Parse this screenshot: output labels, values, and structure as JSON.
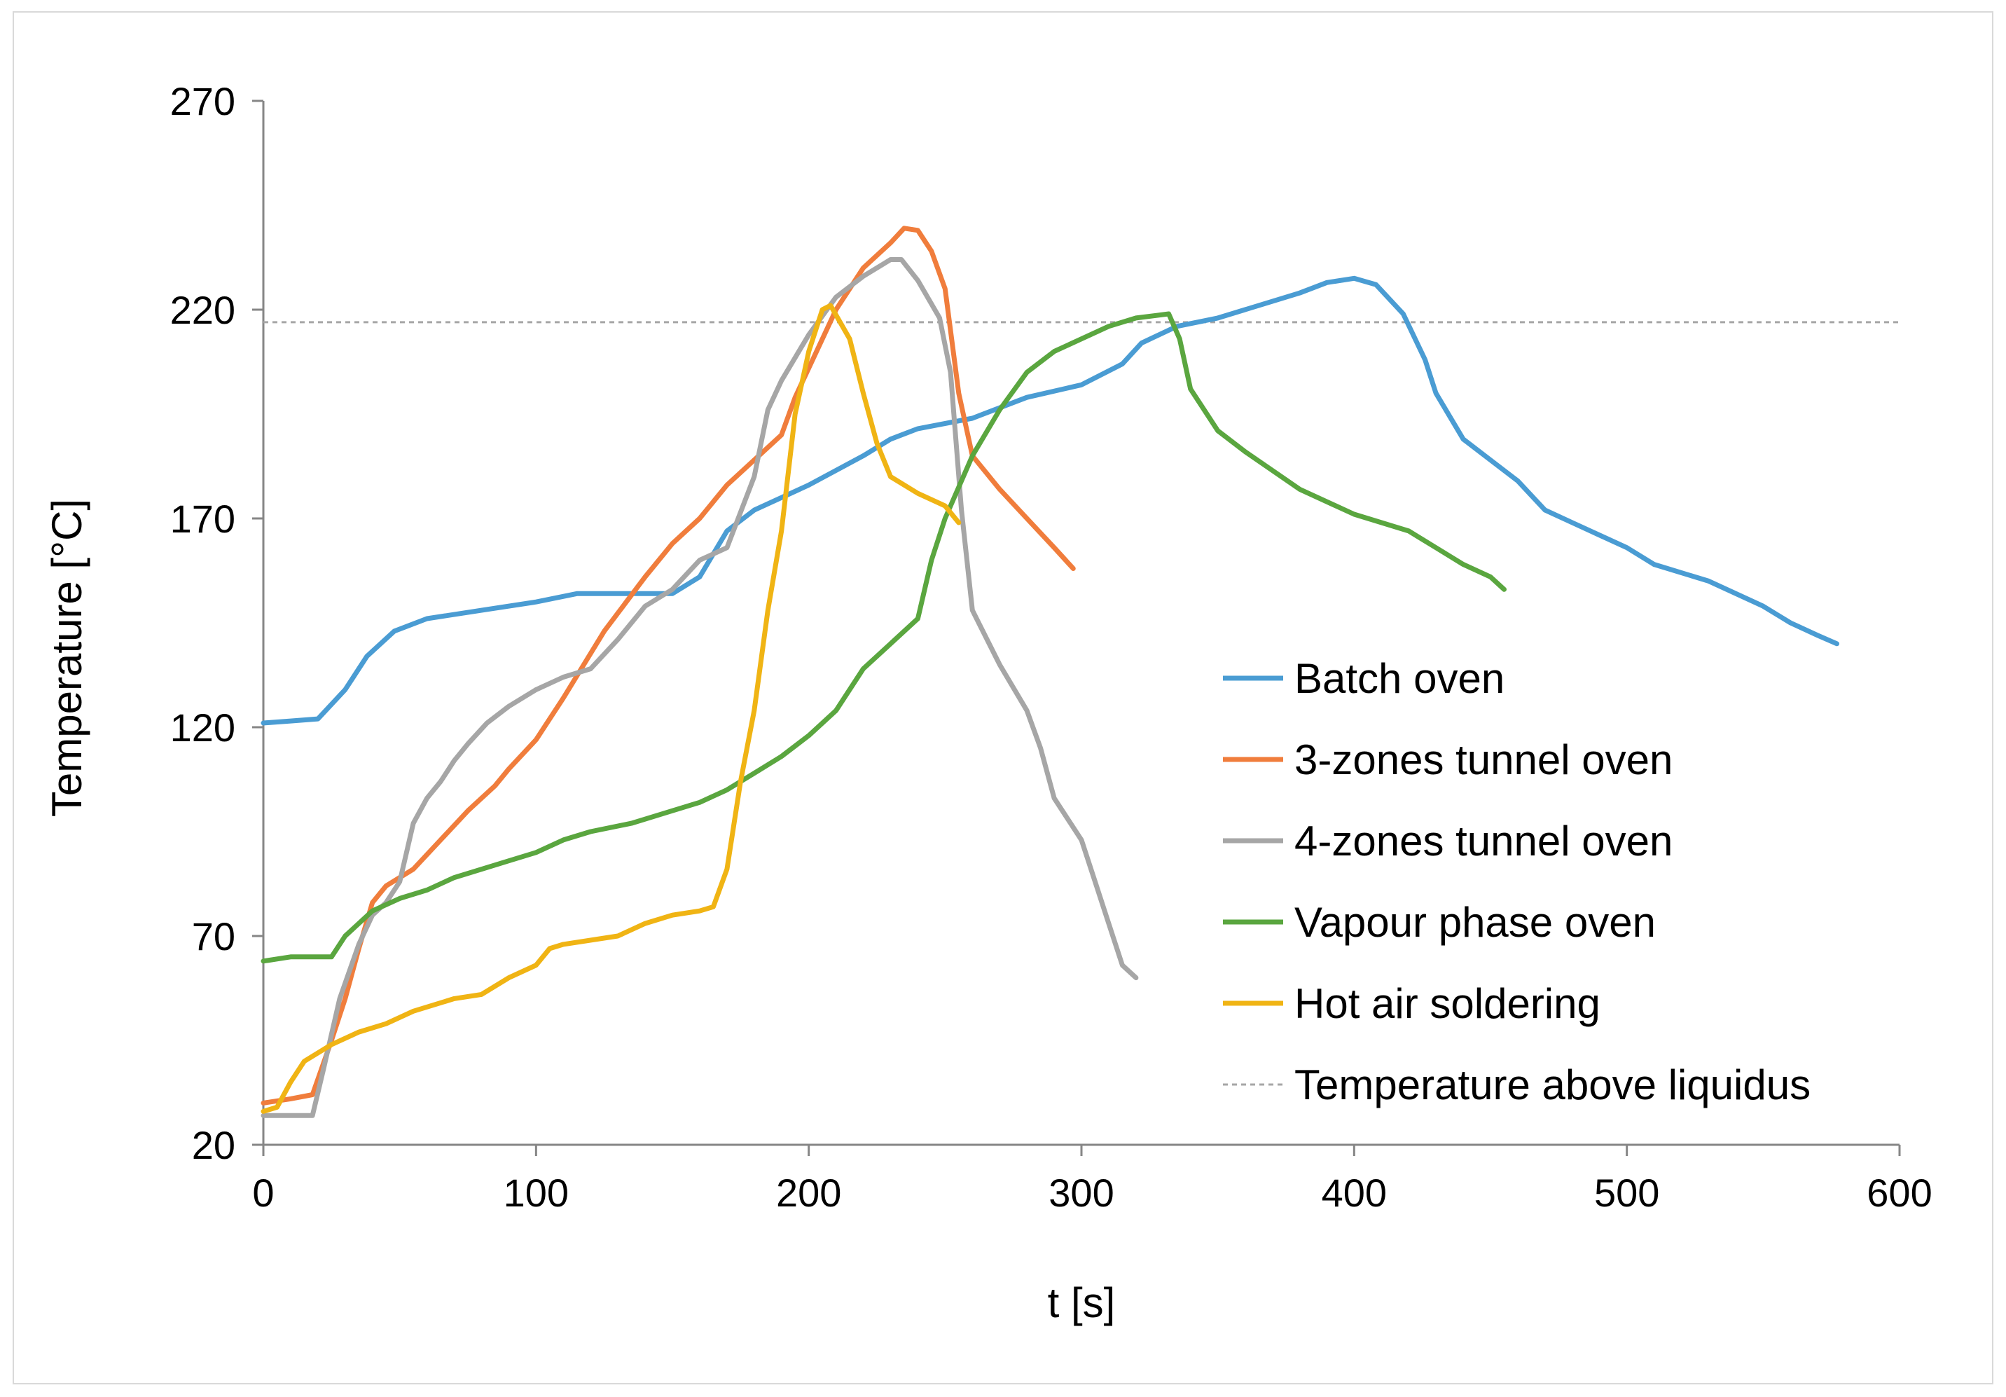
{
  "chart_data": {
    "type": "line",
    "title": "",
    "xlabel": "t [s]",
    "ylabel": "Temperature [°C]",
    "xlim": [
      0,
      600
    ],
    "ylim": [
      20,
      270
    ],
    "xticks": [
      0,
      100,
      200,
      300,
      400,
      500,
      600
    ],
    "yticks": [
      20,
      70,
      120,
      170,
      220,
      270
    ],
    "grid": false,
    "legend_position": "right",
    "series": [
      {
        "name": "Batch oven",
        "color": "#4a9cd3",
        "points": [
          [
            0,
            121
          ],
          [
            10,
            121.5
          ],
          [
            20,
            122
          ],
          [
            30,
            129
          ],
          [
            38,
            137
          ],
          [
            48,
            143
          ],
          [
            60,
            146
          ],
          [
            80,
            148
          ],
          [
            100,
            150
          ],
          [
            115,
            152
          ],
          [
            150,
            152
          ],
          [
            160,
            156
          ],
          [
            170,
            167
          ],
          [
            180,
            172
          ],
          [
            200,
            178
          ],
          [
            220,
            185
          ],
          [
            230,
            189
          ],
          [
            240,
            191.5
          ],
          [
            260,
            194
          ],
          [
            280,
            199
          ],
          [
            300,
            202
          ],
          [
            315,
            207
          ],
          [
            322,
            212
          ],
          [
            335,
            216
          ],
          [
            350,
            218
          ],
          [
            380,
            224
          ],
          [
            390,
            226.5
          ],
          [
            400,
            227.5
          ],
          [
            408,
            226
          ],
          [
            418,
            219
          ],
          [
            426,
            208
          ],
          [
            430,
            200
          ],
          [
            440,
            189
          ],
          [
            450,
            184
          ],
          [
            460,
            179
          ],
          [
            470,
            172
          ],
          [
            480,
            169
          ],
          [
            500,
            163
          ],
          [
            510,
            159
          ],
          [
            530,
            155
          ],
          [
            550,
            149
          ],
          [
            560,
            145
          ],
          [
            570,
            142
          ],
          [
            577,
            140
          ]
        ]
      },
      {
        "name": "3-zones tunnel oven",
        "color": "#f07d3c",
        "points": [
          [
            0,
            30
          ],
          [
            10,
            31
          ],
          [
            18,
            32
          ],
          [
            25,
            45
          ],
          [
            30,
            55
          ],
          [
            35,
            67
          ],
          [
            40,
            78
          ],
          [
            45,
            82
          ],
          [
            55,
            86
          ],
          [
            65,
            93
          ],
          [
            75,
            100
          ],
          [
            85,
            106
          ],
          [
            90,
            110
          ],
          [
            100,
            117
          ],
          [
            110,
            127
          ],
          [
            125,
            143
          ],
          [
            140,
            156
          ],
          [
            150,
            164
          ],
          [
            160,
            170
          ],
          [
            170,
            178
          ],
          [
            180,
            184
          ],
          [
            190,
            190
          ],
          [
            195,
            199
          ],
          [
            200,
            206
          ],
          [
            210,
            220
          ],
          [
            220,
            230
          ],
          [
            230,
            236
          ],
          [
            235,
            239.5
          ],
          [
            240,
            239
          ],
          [
            245,
            234
          ],
          [
            250,
            225
          ],
          [
            255,
            200
          ],
          [
            260,
            185
          ],
          [
            270,
            177
          ],
          [
            280,
            170
          ],
          [
            290,
            163
          ],
          [
            297,
            158
          ]
        ]
      },
      {
        "name": "4-zones tunnel oven",
        "color": "#a6a6a6",
        "points": [
          [
            0,
            27
          ],
          [
            10,
            27
          ],
          [
            18,
            27
          ],
          [
            22,
            38
          ],
          [
            28,
            55
          ],
          [
            35,
            68
          ],
          [
            40,
            75
          ],
          [
            45,
            78
          ],
          [
            50,
            83
          ],
          [
            55,
            97
          ],
          [
            60,
            103
          ],
          [
            65,
            107
          ],
          [
            70,
            112
          ],
          [
            75,
            116
          ],
          [
            82,
            121
          ],
          [
            90,
            125
          ],
          [
            100,
            129
          ],
          [
            110,
            132
          ],
          [
            120,
            134
          ],
          [
            130,
            141
          ],
          [
            140,
            149
          ],
          [
            150,
            153
          ],
          [
            160,
            160
          ],
          [
            170,
            163
          ],
          [
            180,
            180
          ],
          [
            185,
            196
          ],
          [
            190,
            203
          ],
          [
            200,
            214
          ],
          [
            210,
            223
          ],
          [
            220,
            228
          ],
          [
            230,
            232
          ],
          [
            234,
            232
          ],
          [
            240,
            227
          ],
          [
            248,
            218
          ],
          [
            252,
            205
          ],
          [
            256,
            172
          ],
          [
            260,
            148
          ],
          [
            270,
            135
          ],
          [
            280,
            124
          ],
          [
            285,
            115
          ],
          [
            290,
            103
          ],
          [
            300,
            93
          ],
          [
            305,
            83
          ],
          [
            310,
            73
          ],
          [
            315,
            63
          ],
          [
            320,
            60
          ]
        ]
      },
      {
        "name": "Vapour phase oven",
        "color": "#5aa63f",
        "points": [
          [
            0,
            64
          ],
          [
            10,
            65
          ],
          [
            25,
            65
          ],
          [
            30,
            70
          ],
          [
            40,
            76
          ],
          [
            50,
            79
          ],
          [
            60,
            81
          ],
          [
            70,
            84
          ],
          [
            90,
            88
          ],
          [
            100,
            90
          ],
          [
            110,
            93
          ],
          [
            120,
            95
          ],
          [
            135,
            97
          ],
          [
            150,
            100
          ],
          [
            160,
            102
          ],
          [
            170,
            105
          ],
          [
            180,
            109
          ],
          [
            190,
            113
          ],
          [
            200,
            118
          ],
          [
            210,
            124
          ],
          [
            220,
            134
          ],
          [
            230,
            140
          ],
          [
            240,
            146
          ],
          [
            245,
            160
          ],
          [
            250,
            170
          ],
          [
            260,
            185
          ],
          [
            270,
            196
          ],
          [
            280,
            205
          ],
          [
            290,
            210
          ],
          [
            300,
            213
          ],
          [
            310,
            216
          ],
          [
            320,
            218
          ],
          [
            332,
            219
          ],
          [
            336,
            213
          ],
          [
            340,
            201
          ],
          [
            350,
            191
          ],
          [
            360,
            186
          ],
          [
            380,
            177
          ],
          [
            400,
            171
          ],
          [
            420,
            167
          ],
          [
            430,
            163
          ],
          [
            440,
            159
          ],
          [
            450,
            156
          ],
          [
            455,
            153
          ]
        ]
      },
      {
        "name": "Hot air soldering",
        "color": "#f0b414",
        "points": [
          [
            0,
            28
          ],
          [
            5,
            29
          ],
          [
            10,
            35
          ],
          [
            15,
            40
          ],
          [
            25,
            44
          ],
          [
            35,
            47
          ],
          [
            45,
            49
          ],
          [
            55,
            52
          ],
          [
            70,
            55
          ],
          [
            80,
            56
          ],
          [
            90,
            60
          ],
          [
            100,
            63
          ],
          [
            105,
            67
          ],
          [
            110,
            68
          ],
          [
            130,
            70
          ],
          [
            140,
            73
          ],
          [
            150,
            75
          ],
          [
            160,
            76
          ],
          [
            165,
            77
          ],
          [
            170,
            86
          ],
          [
            175,
            107
          ],
          [
            180,
            124
          ],
          [
            185,
            148
          ],
          [
            190,
            167
          ],
          [
            195,
            195
          ],
          [
            200,
            210
          ],
          [
            205,
            220
          ],
          [
            208,
            221
          ],
          [
            215,
            213
          ],
          [
            220,
            200
          ],
          [
            225,
            188
          ],
          [
            230,
            180
          ],
          [
            240,
            176
          ],
          [
            250,
            173
          ],
          [
            255,
            169
          ]
        ]
      }
    ],
    "reference_line": {
      "name": "Temperature above liquidus",
      "y": 217,
      "color": "#a6a6a6",
      "style": "dotted"
    }
  }
}
